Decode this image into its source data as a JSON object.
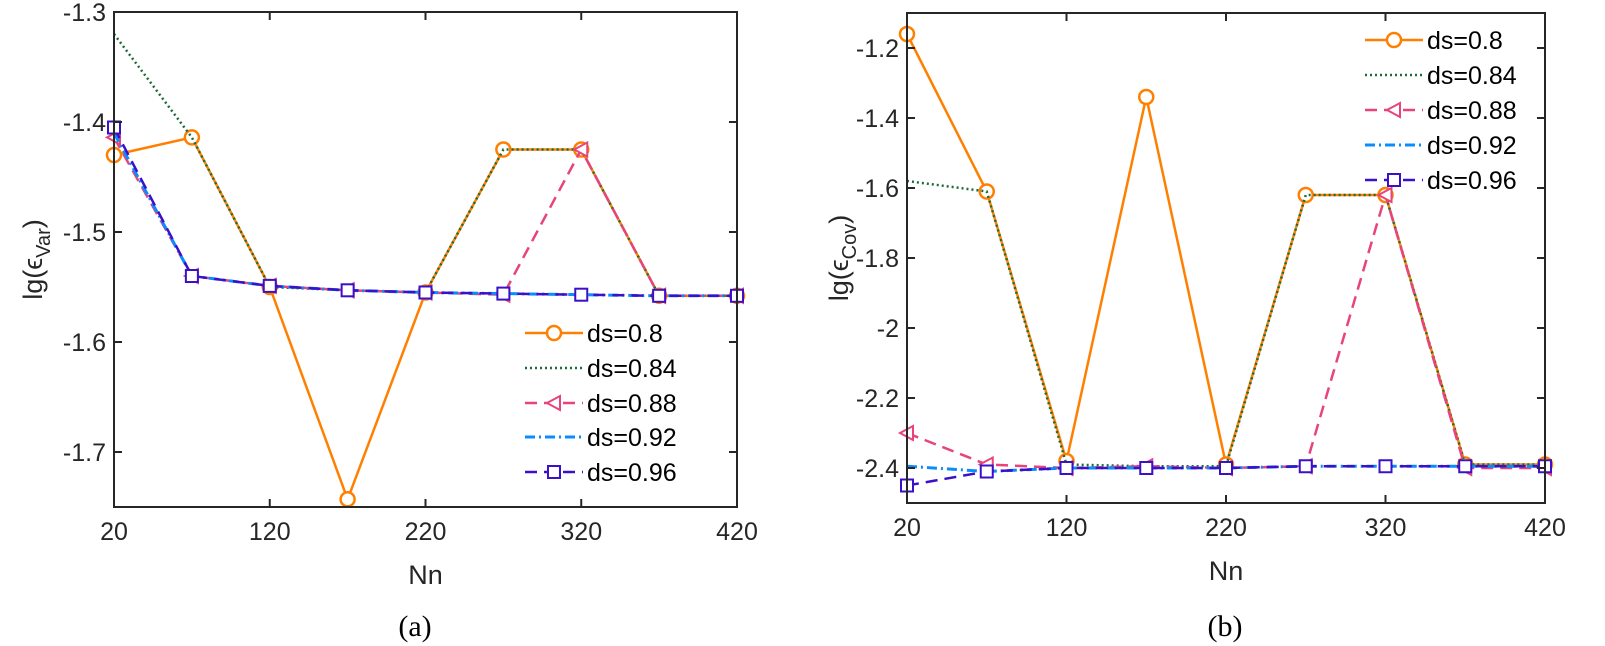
{
  "colors": {
    "ds=0.8": "#ff8000",
    "ds=0.84": "#1e6b3a",
    "ds=0.88": "#e8447a",
    "ds=0.92": "#0a8cff",
    "ds=0.96": "#3a10c8"
  },
  "chart_data": [
    {
      "type": "line",
      "caption": "(a)",
      "xlabel": "Nn",
      "ylabel": "lg(ϵ",
      "ylabel_sub": "Var",
      "ylabel_close": ")",
      "xlim": [
        20,
        420
      ],
      "ylim": [
        -1.75,
        -1.3
      ],
      "xticks": [
        20,
        120,
        220,
        320,
        420
      ],
      "yticks": [
        -1.3,
        -1.4,
        -1.5,
        -1.6,
        -1.7
      ],
      "ytick_labels": [
        "-1.3",
        "-1.4",
        "-1.5",
        "-1.6",
        "-1.7"
      ],
      "legend_position": "bottom-right",
      "grid": false,
      "x": [
        20,
        70,
        120,
        170,
        220,
        270,
        320,
        370,
        420
      ],
      "series": [
        {
          "name": "ds=0.8",
          "style": "solid",
          "marker": "circle",
          "values": [
            -1.43,
            -1.414,
            -1.55,
            -1.743,
            -1.555,
            -1.425,
            -1.425,
            -1.558,
            -1.558
          ]
        },
        {
          "name": "ds=0.84",
          "style": "dotted",
          "marker": "none",
          "values": [
            -1.32,
            -1.414,
            -1.55,
            -1.553,
            -1.555,
            -1.425,
            -1.425,
            -1.558,
            -1.558
          ]
        },
        {
          "name": "ds=0.88",
          "style": "dashed",
          "marker": "triangle-left",
          "values": [
            -1.414,
            -1.54,
            -1.549,
            -1.553,
            -1.555,
            -1.557,
            -1.425,
            -1.558,
            -1.558
          ]
        },
        {
          "name": "ds=0.92",
          "style": "dashdot",
          "marker": "none",
          "values": [
            -1.41,
            -1.54,
            -1.549,
            -1.553,
            -1.555,
            -1.556,
            -1.557,
            -1.558,
            -1.558
          ]
        },
        {
          "name": "ds=0.96",
          "style": "dashed",
          "marker": "square",
          "values": [
            -1.405,
            -1.54,
            -1.549,
            -1.553,
            -1.555,
            -1.556,
            -1.557,
            -1.558,
            -1.558
          ]
        }
      ]
    },
    {
      "type": "line",
      "caption": "(b)",
      "xlabel": "Nn",
      "ylabel": "lg(ϵ",
      "ylabel_sub": "Cov",
      "ylabel_close": ")",
      "xlim": [
        20,
        420
      ],
      "ylim": [
        -2.5,
        -1.1
      ],
      "xticks": [
        20,
        120,
        220,
        320,
        420
      ],
      "yticks": [
        -1.2,
        -1.4,
        -1.6,
        -1.8,
        -2,
        -2.2,
        -2.4
      ],
      "ytick_labels": [
        "-1.2",
        "-1.4",
        "-1.6",
        "-1.8",
        "-2",
        "-2.2",
        "-2.4"
      ],
      "legend_position": "top-right",
      "grid": false,
      "x": [
        20,
        70,
        120,
        170,
        220,
        270,
        320,
        370,
        420
      ],
      "series": [
        {
          "name": "ds=0.8",
          "style": "solid",
          "marker": "circle",
          "values": [
            -1.16,
            -1.61,
            -2.38,
            -1.34,
            -2.39,
            -1.62,
            -1.62,
            -2.39,
            -2.39
          ]
        },
        {
          "name": "ds=0.84",
          "style": "dotted",
          "marker": "none",
          "values": [
            -1.58,
            -1.61,
            -2.39,
            -2.395,
            -2.395,
            -1.62,
            -1.62,
            -2.39,
            -2.39
          ]
        },
        {
          "name": "ds=0.88",
          "style": "dashed",
          "marker": "triangle-left",
          "values": [
            -2.3,
            -2.39,
            -2.4,
            -2.395,
            -2.4,
            -2.395,
            -1.62,
            -2.4,
            -2.4
          ]
        },
        {
          "name": "ds=0.92",
          "style": "dashdot",
          "marker": "none",
          "values": [
            -2.395,
            -2.41,
            -2.4,
            -2.4,
            -2.4,
            -2.395,
            -2.395,
            -2.395,
            -2.395
          ]
        },
        {
          "name": "ds=0.96",
          "style": "dashed",
          "marker": "square",
          "values": [
            -2.45,
            -2.41,
            -2.4,
            -2.4,
            -2.4,
            -2.395,
            -2.395,
            -2.395,
            -2.395
          ]
        }
      ]
    }
  ]
}
